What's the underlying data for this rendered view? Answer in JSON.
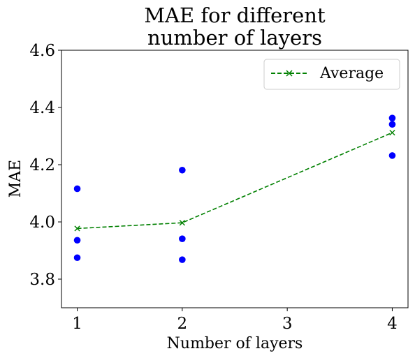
{
  "chart_data": {
    "type": "scatter",
    "title": [
      "MAE for different",
      "number of layers"
    ],
    "xlabel": "Number of layers",
    "ylabel": "MAE",
    "xlim": [
      0.85,
      4.15
    ],
    "ylim": [
      3.7,
      4.6
    ],
    "xticks": [
      1,
      2,
      3,
      4
    ],
    "yticks": [
      3.8,
      4.0,
      4.2,
      4.4,
      4.6
    ],
    "ytick_labels": [
      "3.8",
      "4.0",
      "4.2",
      "4.4",
      "4.6"
    ],
    "grid": false,
    "legend_position": "top-right",
    "series": [
      {
        "kind": "scatter",
        "color": "#0000ff",
        "marker": "circle",
        "points": [
          {
            "x": 1,
            "y": 4.116
          },
          {
            "x": 1,
            "y": 3.936
          },
          {
            "x": 1,
            "y": 3.875
          },
          {
            "x": 2,
            "y": 4.181
          },
          {
            "x": 2,
            "y": 3.941
          },
          {
            "x": 2,
            "y": 3.868
          },
          {
            "x": 4,
            "y": 4.363
          },
          {
            "x": 4,
            "y": 4.341
          },
          {
            "x": 4,
            "y": 4.232
          }
        ]
      },
      {
        "kind": "line",
        "name": "Average",
        "color": "#008000",
        "marker": "x",
        "linestyle": "dashed",
        "points": [
          {
            "x": 1,
            "y": 3.977
          },
          {
            "x": 2,
            "y": 3.997
          },
          {
            "x": 4,
            "y": 4.312
          }
        ]
      }
    ]
  }
}
